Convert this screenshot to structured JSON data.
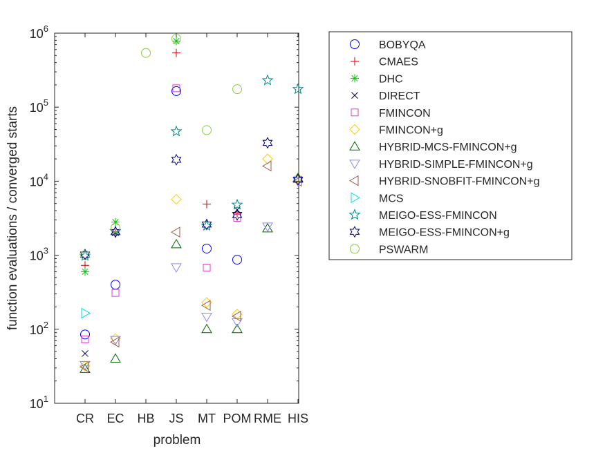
{
  "chart_data": {
    "type": "scatter",
    "xlabel": "problem",
    "ylabel": "function evaluations / converged starts",
    "y_scale": "log",
    "ylim": [
      10,
      1000000
    ],
    "y_ticks": [
      {
        "value": 10,
        "mantissa": "10",
        "exp": "1"
      },
      {
        "value": 100,
        "mantissa": "10",
        "exp": "2"
      },
      {
        "value": 1000,
        "mantissa": "10",
        "exp": "3"
      },
      {
        "value": 10000,
        "mantissa": "10",
        "exp": "4"
      },
      {
        "value": 100000,
        "mantissa": "10",
        "exp": "5"
      },
      {
        "value": 1000000,
        "mantissa": "10",
        "exp": "6"
      }
    ],
    "categories": [
      "CR",
      "EC",
      "HB",
      "JS",
      "MT",
      "POM",
      "RME",
      "HIS"
    ],
    "grid": false,
    "legend_position": "outside-right",
    "series": [
      {
        "name": "BOBYQA",
        "marker": "circle",
        "color": "#0000ff",
        "values": [
          85,
          400,
          null,
          165000,
          1230,
          870,
          null,
          null
        ]
      },
      {
        "name": "CMAES",
        "marker": "plus",
        "color": "#cc0000",
        "values": [
          730,
          2000,
          null,
          540000,
          4900,
          3700,
          null,
          null
        ]
      },
      {
        "name": "DHC",
        "marker": "asterisk",
        "color": "#00cc00",
        "values": [
          600,
          2800,
          null,
          780000,
          null,
          null,
          null,
          null
        ]
      },
      {
        "name": "DIRECT",
        "marker": "x",
        "color": "#000033",
        "values": [
          47,
          2000,
          null,
          null,
          null,
          4100,
          null,
          null
        ]
      },
      {
        "name": "FMINCON",
        "marker": "square",
        "color": "#e040c0",
        "values": [
          73,
          310,
          null,
          180000,
          680,
          3200,
          null,
          null
        ]
      },
      {
        "name": "FMINCON+g",
        "marker": "diamond",
        "color": "#ffcc00",
        "values": [
          32,
          75,
          null,
          5700,
          230,
          160,
          20000,
          11000
        ]
      },
      {
        "name": "HYBRID-MCS-FMINCON+g",
        "marker": "triangle-up",
        "color": "#006600",
        "values": [
          29,
          40,
          null,
          1400,
          100,
          100,
          2300,
          11000
        ]
      },
      {
        "name": "HYBRID-SIMPLE-FMINCON+g",
        "marker": "triangle-down",
        "color": "#8888ff",
        "values": [
          33,
          72,
          null,
          690,
          148,
          125,
          2450,
          10000
        ]
      },
      {
        "name": "HYBRID-SNOBFIT-FMINCON+g",
        "marker": "triangle-left",
        "color": "#a05a50",
        "values": [
          31,
          67,
          null,
          2050,
          210,
          150,
          16000,
          10000
        ]
      },
      {
        "name": "MCS",
        "marker": "triangle-right",
        "color": "#00dddd",
        "values": [
          165,
          null,
          null,
          null,
          null,
          null,
          null,
          null
        ]
      },
      {
        "name": "MEIGO-ESS-FMINCON",
        "marker": "pentagram",
        "color": "#008888",
        "values": [
          980,
          2100,
          null,
          47000,
          2500,
          4800,
          230000,
          175000
        ]
      },
      {
        "name": "MEIGO-ESS-FMINCON+g",
        "marker": "hexagram",
        "color": "#000080",
        "values": [
          1020,
          2050,
          null,
          19500,
          2600,
          3500,
          33000,
          10500
        ]
      },
      {
        "name": "PSWARM",
        "marker": "circle",
        "color": "#88cc44",
        "values": [
          1000,
          2350,
          540000,
          840000,
          49000,
          175000,
          null,
          null
        ]
      }
    ]
  }
}
